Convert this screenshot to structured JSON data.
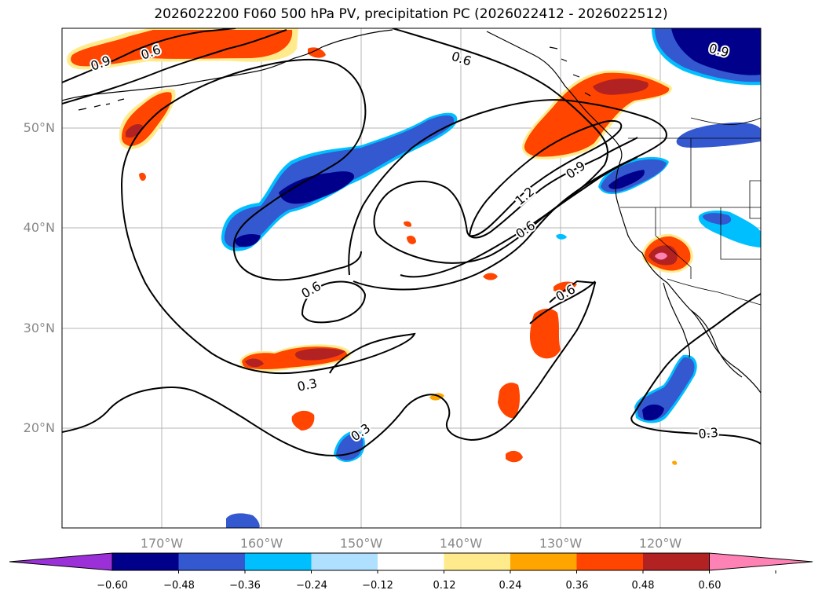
{
  "title": "2026022200 F060 500 hPa PV, precipitation PC (2026022412 - 2026022512)",
  "lat_labels": [
    "50°N",
    "40°N",
    "30°N",
    "20°N"
  ],
  "lon_labels": [
    "170°W",
    "160°W",
    "150°W",
    "140°W",
    "130°W",
    "120°W"
  ],
  "contour_labels": [
    "0.9",
    "0.6",
    "0.6",
    "0.9",
    "1.2",
    "0.9",
    "0.6",
    "0.6",
    "0.6",
    "0.3",
    "0.3",
    "0.3"
  ],
  "colorbar": {
    "ticks": [
      "−0.60",
      "−0.48",
      "−0.36",
      "−0.24",
      "−0.12",
      "0.12",
      "0.24",
      "0.36",
      "0.48",
      "0.60"
    ],
    "colors": [
      "#9b30d8",
      "#00008b",
      "#3458d0",
      "#00bfff",
      "#b0e0ff",
      "#ffffff",
      "#ffeb8c",
      "#ffa500",
      "#ff4500",
      "#b22222",
      "#ff82b4"
    ]
  },
  "colors": {
    "grid": "#b4b4b4",
    "contour": "#000000",
    "coast": "#000000"
  }
}
